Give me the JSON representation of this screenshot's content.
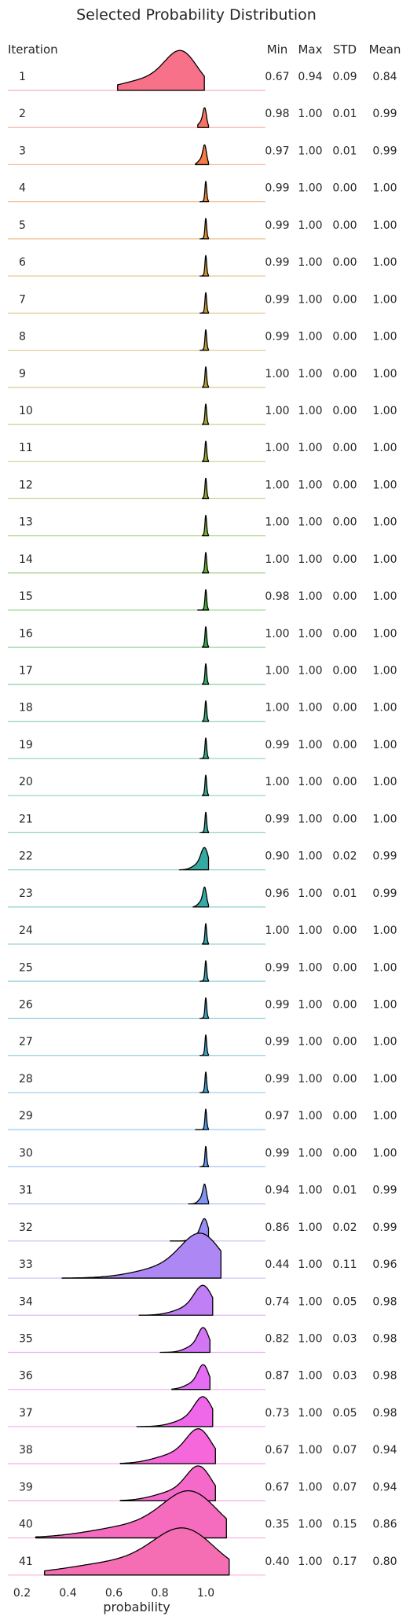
{
  "chart_data": {
    "type": "ridgeline",
    "title": "Selected Probability Distribution",
    "row_header": "Iteration",
    "stat_headers": [
      "Min",
      "Max",
      "STD",
      "Mean"
    ],
    "xlabel": "probability",
    "xlim": [
      0.18,
      1.2
    ],
    "xticks": [
      0.2,
      0.4,
      0.6,
      0.8,
      1.0
    ],
    "xtick_labels": [
      "0.2",
      "0.4",
      "0.6",
      "0.8",
      "1.0"
    ],
    "colors": [
      "#f77189",
      "#f7754f",
      "#e98932",
      "#d39532",
      "#c49c32",
      "#b5a231",
      "#a3a931",
      "#8dae31",
      "#6cb631",
      "#33b038",
      "#34ae68",
      "#35ac82",
      "#36ab93",
      "#36aaa0",
      "#37a8ac",
      "#38a7b8",
      "#3ba5c7",
      "#3fa1d9",
      "#5b9af4",
      "#8c92f4",
      "#ad88f4",
      "#cc7af4",
      "#e86af4",
      "#f566dd",
      "#f56ac4",
      "#f56eb4"
    ],
    "rows": [
      {
        "iteration": "1",
        "min": "0.67",
        "max": "0.94",
        "std": "0.09",
        "mean": "0.84"
      },
      {
        "iteration": "2",
        "min": "0.98",
        "max": "1.00",
        "std": "0.01",
        "mean": "0.99"
      },
      {
        "iteration": "3",
        "min": "0.97",
        "max": "1.00",
        "std": "0.01",
        "mean": "0.99"
      },
      {
        "iteration": "4",
        "min": "0.99",
        "max": "1.00",
        "std": "0.00",
        "mean": "1.00"
      },
      {
        "iteration": "5",
        "min": "0.99",
        "max": "1.00",
        "std": "0.00",
        "mean": "1.00"
      },
      {
        "iteration": "6",
        "min": "0.99",
        "max": "1.00",
        "std": "0.00",
        "mean": "1.00"
      },
      {
        "iteration": "7",
        "min": "0.99",
        "max": "1.00",
        "std": "0.00",
        "mean": "1.00"
      },
      {
        "iteration": "8",
        "min": "0.99",
        "max": "1.00",
        "std": "0.00",
        "mean": "1.00"
      },
      {
        "iteration": "9",
        "min": "1.00",
        "max": "1.00",
        "std": "0.00",
        "mean": "1.00"
      },
      {
        "iteration": "10",
        "min": "1.00",
        "max": "1.00",
        "std": "0.00",
        "mean": "1.00"
      },
      {
        "iteration": "11",
        "min": "1.00",
        "max": "1.00",
        "std": "0.00",
        "mean": "1.00"
      },
      {
        "iteration": "12",
        "min": "1.00",
        "max": "1.00",
        "std": "0.00",
        "mean": "1.00"
      },
      {
        "iteration": "13",
        "min": "1.00",
        "max": "1.00",
        "std": "0.00",
        "mean": "1.00"
      },
      {
        "iteration": "14",
        "min": "1.00",
        "max": "1.00",
        "std": "0.00",
        "mean": "1.00"
      },
      {
        "iteration": "15",
        "min": "0.98",
        "max": "1.00",
        "std": "0.00",
        "mean": "1.00"
      },
      {
        "iteration": "16",
        "min": "1.00",
        "max": "1.00",
        "std": "0.00",
        "mean": "1.00"
      },
      {
        "iteration": "17",
        "min": "1.00",
        "max": "1.00",
        "std": "0.00",
        "mean": "1.00"
      },
      {
        "iteration": "18",
        "min": "1.00",
        "max": "1.00",
        "std": "0.00",
        "mean": "1.00"
      },
      {
        "iteration": "19",
        "min": "0.99",
        "max": "1.00",
        "std": "0.00",
        "mean": "1.00"
      },
      {
        "iteration": "20",
        "min": "1.00",
        "max": "1.00",
        "std": "0.00",
        "mean": "1.00"
      },
      {
        "iteration": "21",
        "min": "0.99",
        "max": "1.00",
        "std": "0.00",
        "mean": "1.00"
      },
      {
        "iteration": "22",
        "min": "0.90",
        "max": "1.00",
        "std": "0.02",
        "mean": "0.99"
      },
      {
        "iteration": "23",
        "min": "0.96",
        "max": "1.00",
        "std": "0.01",
        "mean": "0.99"
      },
      {
        "iteration": "24",
        "min": "1.00",
        "max": "1.00",
        "std": "0.00",
        "mean": "1.00"
      },
      {
        "iteration": "25",
        "min": "0.99",
        "max": "1.00",
        "std": "0.00",
        "mean": "1.00"
      },
      {
        "iteration": "26",
        "min": "0.99",
        "max": "1.00",
        "std": "0.00",
        "mean": "1.00"
      },
      {
        "iteration": "27",
        "min": "0.99",
        "max": "1.00",
        "std": "0.00",
        "mean": "1.00"
      },
      {
        "iteration": "28",
        "min": "0.99",
        "max": "1.00",
        "std": "0.00",
        "mean": "1.00"
      },
      {
        "iteration": "29",
        "min": "0.97",
        "max": "1.00",
        "std": "0.00",
        "mean": "1.00"
      },
      {
        "iteration": "30",
        "min": "0.99",
        "max": "1.00",
        "std": "0.00",
        "mean": "1.00"
      },
      {
        "iteration": "31",
        "min": "0.94",
        "max": "1.00",
        "std": "0.01",
        "mean": "0.99"
      },
      {
        "iteration": "32",
        "min": "0.86",
        "max": "1.00",
        "std": "0.02",
        "mean": "0.99"
      },
      {
        "iteration": "33",
        "min": "0.44",
        "max": "1.00",
        "std": "0.11",
        "mean": "0.96"
      },
      {
        "iteration": "34",
        "min": "0.74",
        "max": "1.00",
        "std": "0.05",
        "mean": "0.98"
      },
      {
        "iteration": "35",
        "min": "0.82",
        "max": "1.00",
        "std": "0.03",
        "mean": "0.98"
      },
      {
        "iteration": "36",
        "min": "0.87",
        "max": "1.00",
        "std": "0.03",
        "mean": "0.98"
      },
      {
        "iteration": "37",
        "min": "0.73",
        "max": "1.00",
        "std": "0.05",
        "mean": "0.98"
      },
      {
        "iteration": "38",
        "min": "0.67",
        "max": "1.00",
        "std": "0.07",
        "mean": "0.94"
      },
      {
        "iteration": "39",
        "min": "0.67",
        "max": "1.00",
        "std": "0.07",
        "mean": "0.94"
      },
      {
        "iteration": "40",
        "min": "0.35",
        "max": "1.00",
        "std": "0.15",
        "mean": "0.86"
      },
      {
        "iteration": "41",
        "min": "0.40",
        "max": "1.00",
        "std": "0.17",
        "mean": "0.80"
      }
    ]
  }
}
